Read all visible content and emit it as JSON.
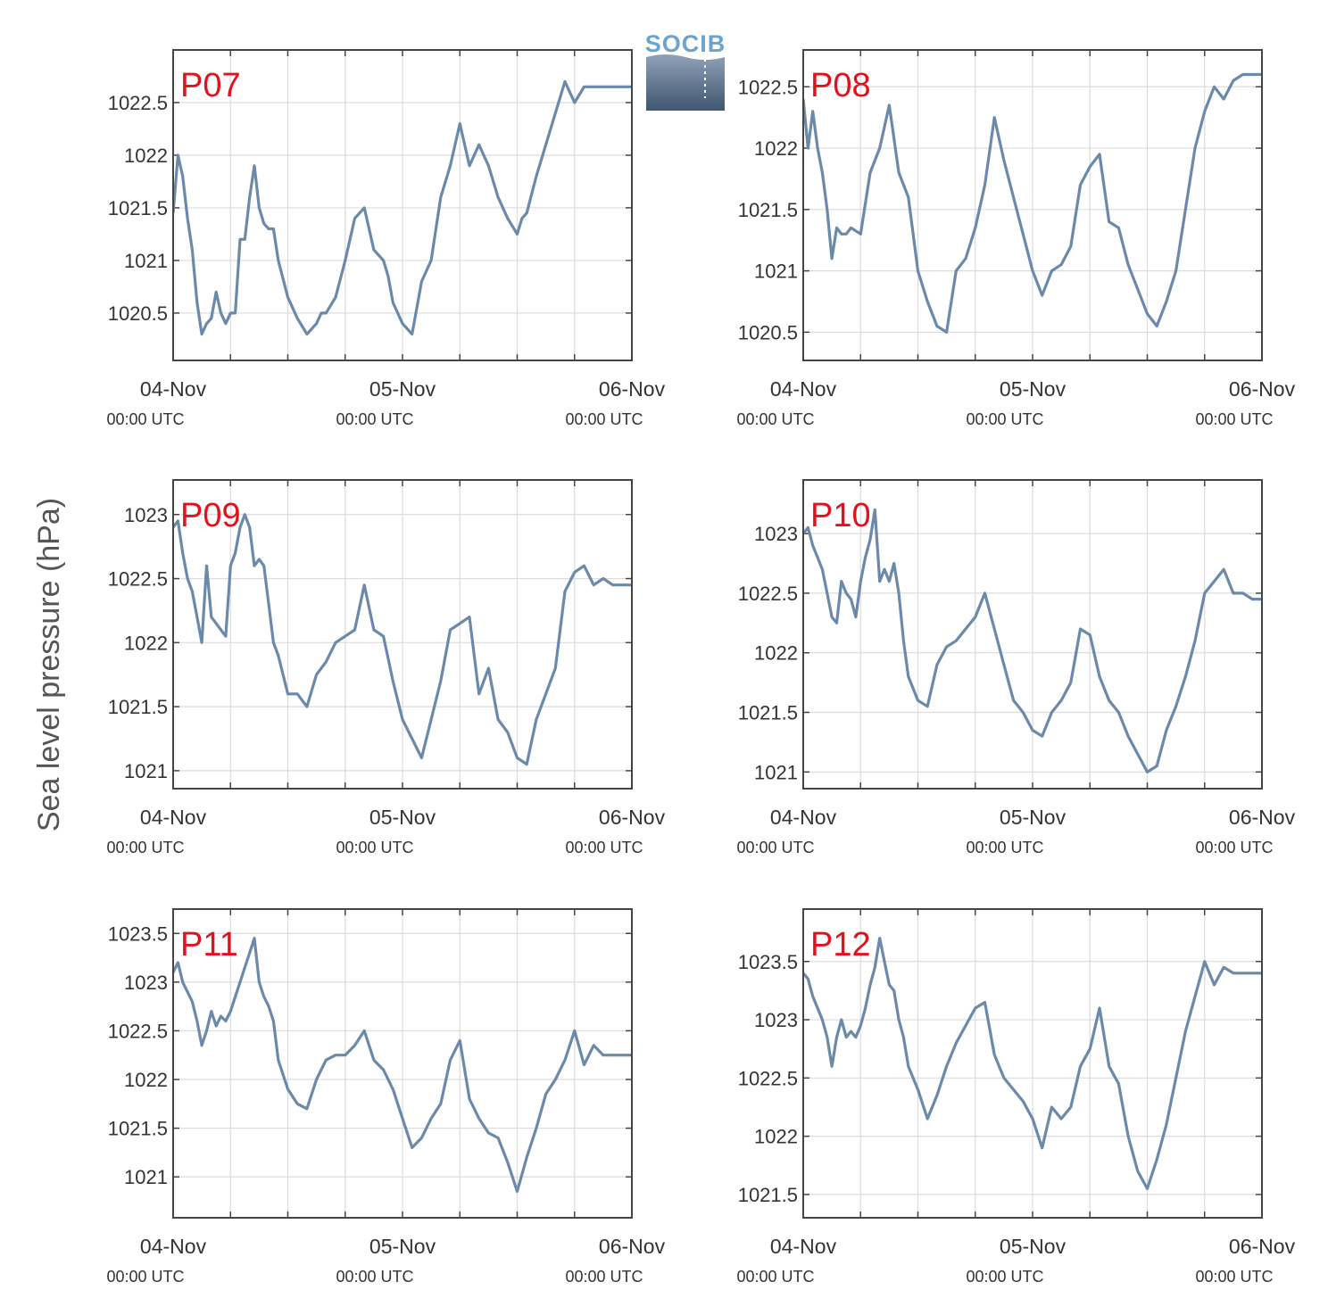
{
  "figure": {
    "ylabel": "Sea level pressure (hPa)",
    "logo_text": "SOCIB",
    "line_color": "#6b89a8",
    "label_color": "#e3111b"
  },
  "chart_data": [
    {
      "type": "line",
      "title": "P07",
      "x_ticks": [
        {
          "line1": "04-Nov",
          "line2": "00:00 UTC"
        },
        {
          "line1": "05-Nov",
          "line2": "00:00 UTC"
        },
        {
          "line1": "06-Nov",
          "line2": "00:00 UTC"
        }
      ],
      "xlim": [
        0,
        48
      ],
      "ylim": [
        1020.05,
        1023.0
      ],
      "yticks": [
        1020.5,
        1021,
        1021.5,
        1022,
        1022.5
      ],
      "ytick_labels": [
        "1020.5",
        "1021",
        "1021.5",
        "1022",
        "1022.5"
      ],
      "x": [
        0,
        0.5,
        1,
        1.5,
        2,
        2.5,
        3,
        3.5,
        4,
        4.5,
        5,
        5.5,
        6,
        6.5,
        7,
        7.5,
        8,
        8.5,
        9,
        9.5,
        10,
        10.5,
        11,
        12,
        13,
        14,
        15,
        15.5,
        16,
        17,
        18,
        19,
        20,
        21,
        22,
        22.5,
        23,
        24,
        25,
        26,
        27,
        28,
        29,
        30,
        31,
        32,
        32.5,
        33,
        34,
        35,
        36,
        36.5,
        37,
        38,
        39,
        40,
        41,
        42,
        43,
        44,
        45,
        46,
        47,
        47.5,
        48
      ],
      "y": [
        1021.45,
        1022.0,
        1021.8,
        1021.4,
        1021.1,
        1020.6,
        1020.3,
        1020.4,
        1020.45,
        1020.7,
        1020.5,
        1020.4,
        1020.5,
        1020.5,
        1021.2,
        1021.2,
        1021.6,
        1021.9,
        1021.5,
        1021.35,
        1021.3,
        1021.3,
        1021.0,
        1020.65,
        1020.45,
        1020.3,
        1020.4,
        1020.5,
        1020.5,
        1020.65,
        1021.0,
        1021.4,
        1021.5,
        1021.1,
        1021.0,
        1020.85,
        1020.6,
        1020.4,
        1020.3,
        1020.8,
        1021.0,
        1021.6,
        1021.9,
        1022.3,
        1021.9,
        1022.1,
        1022.0,
        1021.9,
        1021.6,
        1021.4,
        1021.25,
        1021.4,
        1021.45,
        1021.8,
        1022.1,
        1022.4,
        1022.7,
        1022.5,
        1022.65,
        1022.65,
        1022.65,
        1022.65,
        1022.65,
        1022.65,
        1022.65
      ]
    },
    {
      "type": "line",
      "title": "P08",
      "x_ticks": [
        {
          "line1": "04-Nov",
          "line2": "00:00 UTC"
        },
        {
          "line1": "05-Nov",
          "line2": "00:00 UTC"
        },
        {
          "line1": "06-Nov",
          "line2": "00:00 UTC"
        }
      ],
      "xlim": [
        0,
        48
      ],
      "ylim": [
        1020.27,
        1022.8
      ],
      "yticks": [
        1020.5,
        1021,
        1021.5,
        1022,
        1022.5
      ],
      "ytick_labels": [
        "1020.5",
        "1021",
        "1021.5",
        "1022",
        "1022.5"
      ],
      "x": [
        0,
        0.5,
        1,
        1.5,
        2,
        2.5,
        3,
        3.5,
        4,
        4.5,
        5,
        6,
        7,
        8,
        9,
        10,
        11,
        12,
        13,
        14,
        15,
        16,
        17,
        18,
        19,
        20,
        21,
        22,
        23,
        24,
        25,
        26,
        27,
        28,
        29,
        30,
        31,
        32,
        33,
        34,
        35,
        36,
        37,
        38,
        39,
        40,
        41,
        42,
        43,
        44,
        45,
        46,
        47,
        48
      ],
      "y": [
        1022.4,
        1022.0,
        1022.3,
        1022.0,
        1021.8,
        1021.5,
        1021.1,
        1021.35,
        1021.3,
        1021.3,
        1021.35,
        1021.3,
        1021.8,
        1022.0,
        1022.35,
        1021.8,
        1021.6,
        1021.0,
        1020.75,
        1020.55,
        1020.5,
        1021.0,
        1021.1,
        1021.35,
        1021.7,
        1022.25,
        1021.9,
        1021.6,
        1021.3,
        1021.0,
        1020.8,
        1021.0,
        1021.05,
        1021.2,
        1021.7,
        1021.85,
        1021.95,
        1021.4,
        1021.35,
        1021.05,
        1020.85,
        1020.65,
        1020.55,
        1020.75,
        1021.0,
        1021.5,
        1022.0,
        1022.3,
        1022.5,
        1022.4,
        1022.55,
        1022.6,
        1022.6,
        1022.6
      ]
    },
    {
      "type": "line",
      "title": "P09",
      "x_ticks": [
        {
          "line1": "04-Nov",
          "line2": "00:00 UTC"
        },
        {
          "line1": "05-Nov",
          "line2": "00:00 UTC"
        },
        {
          "line1": "06-Nov",
          "line2": "00:00 UTC"
        }
      ],
      "xlim": [
        0,
        48
      ],
      "ylim": [
        1020.86,
        1023.27
      ],
      "yticks": [
        1021,
        1021.5,
        1022,
        1022.5,
        1023
      ],
      "ytick_labels": [
        "1021",
        "1021.5",
        "1022",
        "1022.5",
        "1023"
      ],
      "x": [
        0,
        0.5,
        1,
        1.5,
        2,
        2.5,
        3,
        3.5,
        4,
        4.5,
        5,
        5.5,
        6,
        6.5,
        7,
        7.5,
        8,
        8.5,
        9,
        9.5,
        10,
        10.5,
        11,
        12,
        13,
        14,
        15,
        15.5,
        16,
        17,
        18,
        19,
        20,
        21,
        22,
        23,
        24,
        25,
        26,
        27,
        28,
        29,
        30,
        31,
        32,
        33,
        34,
        35,
        36,
        37,
        38,
        39,
        40,
        41,
        42,
        43,
        44,
        45,
        46,
        47,
        48
      ],
      "y": [
        1022.9,
        1022.95,
        1022.7,
        1022.5,
        1022.4,
        1022.2,
        1022.0,
        1022.6,
        1022.2,
        1022.15,
        1022.1,
        1022.05,
        1022.6,
        1022.7,
        1022.9,
        1023.0,
        1022.9,
        1022.6,
        1022.65,
        1022.6,
        1022.3,
        1022.0,
        1021.9,
        1021.6,
        1021.6,
        1021.5,
        1021.75,
        1021.8,
        1021.85,
        1022.0,
        1022.05,
        1022.1,
        1022.45,
        1022.1,
        1022.05,
        1021.7,
        1021.4,
        1021.25,
        1021.1,
        1021.4,
        1021.7,
        1022.1,
        1022.15,
        1022.2,
        1021.6,
        1021.8,
        1021.4,
        1021.3,
        1021.1,
        1021.05,
        1021.4,
        1021.6,
        1021.8,
        1022.4,
        1022.55,
        1022.6,
        1022.45,
        1022.5,
        1022.45,
        1022.45,
        1022.45
      ]
    },
    {
      "type": "line",
      "title": "P10",
      "x_ticks": [
        {
          "line1": "04-Nov",
          "line2": "00:00 UTC"
        },
        {
          "line1": "05-Nov",
          "line2": "00:00 UTC"
        },
        {
          "line1": "06-Nov",
          "line2": "00:00 UTC"
        }
      ],
      "xlim": [
        0,
        48
      ],
      "ylim": [
        1020.86,
        1023.45
      ],
      "yticks": [
        1021,
        1021.5,
        1022,
        1022.5,
        1023
      ],
      "ytick_labels": [
        "1021",
        "1021.5",
        "1022",
        "1022.5",
        "1023"
      ],
      "x": [
        0,
        0.5,
        1,
        1.5,
        2,
        2.5,
        3,
        3.5,
        4,
        4.5,
        5,
        5.5,
        6,
        6.5,
        7,
        7.5,
        8,
        8.5,
        9,
        9.5,
        10,
        10.5,
        11,
        12,
        13,
        14,
        15,
        16,
        17,
        18,
        19,
        20,
        21,
        22,
        23,
        24,
        25,
        26,
        27,
        28,
        29,
        30,
        31,
        32,
        33,
        34,
        35,
        36,
        37,
        38,
        39,
        40,
        41,
        42,
        43,
        44,
        45,
        46,
        47,
        48
      ],
      "y": [
        1023.0,
        1023.05,
        1022.9,
        1022.8,
        1022.7,
        1022.5,
        1022.3,
        1022.25,
        1022.6,
        1022.5,
        1022.45,
        1022.3,
        1022.6,
        1022.8,
        1022.95,
        1023.2,
        1022.6,
        1022.7,
        1022.6,
        1022.75,
        1022.5,
        1022.1,
        1021.8,
        1021.6,
        1021.55,
        1021.9,
        1022.05,
        1022.1,
        1022.2,
        1022.3,
        1022.5,
        1022.2,
        1021.9,
        1021.6,
        1021.5,
        1021.35,
        1021.3,
        1021.5,
        1021.6,
        1021.75,
        1022.2,
        1022.15,
        1021.8,
        1021.6,
        1021.5,
        1021.3,
        1021.15,
        1021.0,
        1021.05,
        1021.35,
        1021.55,
        1021.8,
        1022.1,
        1022.5,
        1022.6,
        1022.7,
        1022.5,
        1022.5,
        1022.45,
        1022.45
      ]
    },
    {
      "type": "line",
      "title": "P11",
      "x_ticks": [
        {
          "line1": "04-Nov",
          "line2": "00:00 UTC"
        },
        {
          "line1": "05-Nov",
          "line2": "00:00 UTC"
        },
        {
          "line1": "06-Nov",
          "line2": "00:00 UTC"
        }
      ],
      "xlim": [
        0,
        48
      ],
      "ylim": [
        1020.58,
        1023.75
      ],
      "yticks": [
        1021,
        1021.5,
        1022,
        1022.5,
        1023,
        1023.5
      ],
      "ytick_labels": [
        "1021",
        "1021.5",
        "1022",
        "1022.5",
        "1023",
        "1023.5"
      ],
      "x": [
        0,
        0.5,
        1,
        1.5,
        2,
        2.5,
        3,
        3.5,
        4,
        4.5,
        5,
        5.5,
        6,
        6.5,
        7,
        7.5,
        8,
        8.5,
        9,
        9.5,
        10,
        10.5,
        11,
        12,
        13,
        14,
        15,
        16,
        17,
        18,
        19,
        20,
        21,
        22,
        23,
        24,
        25,
        26,
        27,
        28,
        29,
        30,
        31,
        32,
        33,
        34,
        35,
        36,
        37,
        38,
        39,
        40,
        41,
        42,
        43,
        44,
        45,
        46,
        47,
        48
      ],
      "y": [
        1023.1,
        1023.2,
        1023.0,
        1022.9,
        1022.8,
        1022.6,
        1022.35,
        1022.5,
        1022.7,
        1022.55,
        1022.65,
        1022.6,
        1022.7,
        1022.85,
        1023.0,
        1023.15,
        1023.3,
        1023.45,
        1023.0,
        1022.85,
        1022.75,
        1022.6,
        1022.2,
        1021.9,
        1021.75,
        1021.7,
        1022.0,
        1022.2,
        1022.25,
        1022.25,
        1022.35,
        1022.5,
        1022.2,
        1022.1,
        1021.9,
        1021.6,
        1021.3,
        1021.4,
        1021.6,
        1021.75,
        1022.2,
        1022.4,
        1021.8,
        1021.6,
        1021.45,
        1021.4,
        1021.15,
        1020.85,
        1021.2,
        1021.5,
        1021.85,
        1022.0,
        1022.2,
        1022.5,
        1022.15,
        1022.35,
        1022.25,
        1022.25,
        1022.25,
        1022.25
      ]
    },
    {
      "type": "line",
      "title": "P12",
      "x_ticks": [
        {
          "line1": "04-Nov",
          "line2": "00:00 UTC"
        },
        {
          "line1": "05-Nov",
          "line2": "00:00 UTC"
        },
        {
          "line1": "06-Nov",
          "line2": "00:00 UTC"
        }
      ],
      "xlim": [
        0,
        48
      ],
      "ylim": [
        1021.3,
        1023.95
      ],
      "yticks": [
        1021.5,
        1022,
        1022.5,
        1023,
        1023.5
      ],
      "ytick_labels": [
        "1021.5",
        "1022",
        "1022.5",
        "1023",
        "1023.5"
      ],
      "x": [
        0,
        0.5,
        1,
        1.5,
        2,
        2.5,
        3,
        3.5,
        4,
        4.5,
        5,
        5.5,
        6,
        6.5,
        7,
        7.5,
        8,
        8.5,
        9,
        9.5,
        10,
        10.5,
        11,
        12,
        13,
        14,
        15,
        16,
        17,
        18,
        19,
        20,
        21,
        22,
        23,
        24,
        25,
        26,
        27,
        28,
        29,
        30,
        31,
        32,
        33,
        34,
        35,
        36,
        37,
        38,
        39,
        40,
        41,
        42,
        43,
        44,
        45,
        46,
        47,
        48
      ],
      "y": [
        1023.4,
        1023.35,
        1023.2,
        1023.1,
        1023.0,
        1022.85,
        1022.6,
        1022.85,
        1023.0,
        1022.85,
        1022.9,
        1022.85,
        1022.95,
        1023.1,
        1023.3,
        1023.45,
        1023.7,
        1023.5,
        1023.3,
        1023.25,
        1023.0,
        1022.85,
        1022.6,
        1022.4,
        1022.15,
        1022.35,
        1022.6,
        1022.8,
        1022.95,
        1023.1,
        1023.15,
        1022.7,
        1022.5,
        1022.4,
        1022.3,
        1022.15,
        1021.9,
        1022.25,
        1022.15,
        1022.25,
        1022.6,
        1022.75,
        1023.1,
        1022.6,
        1022.45,
        1022.0,
        1021.7,
        1021.55,
        1021.8,
        1022.1,
        1022.5,
        1022.9,
        1023.2,
        1023.5,
        1023.3,
        1023.45,
        1023.4,
        1023.4,
        1023.4,
        1023.4
      ]
    }
  ]
}
